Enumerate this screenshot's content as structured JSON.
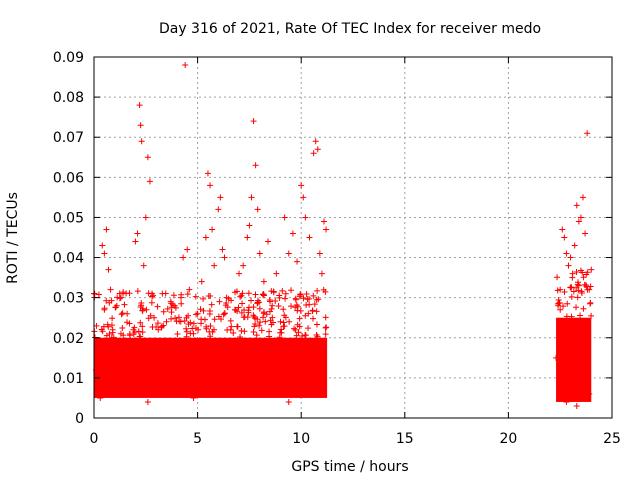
{
  "chart_data": {
    "type": "scatter",
    "title": "Day 316 of 2021, Rate Of TEC Index for receiver medo",
    "xlabel": "GPS time / hours",
    "ylabel": "ROTI / TECUs",
    "xlim": [
      0,
      25
    ],
    "ylim": [
      0,
      0.09
    ],
    "x_ticks": [
      "0",
      "5",
      "10",
      "15",
      "20",
      "25"
    ],
    "y_ticks": [
      "0",
      "0.01",
      "0.02",
      "0.03",
      "0.04",
      "0.05",
      "0.06",
      "0.07",
      "0.08",
      "0.09"
    ],
    "grid": true,
    "marker": "+",
    "colors": {
      "series": "#ff0000",
      "grid": "#a0a0a0"
    },
    "series": [
      {
        "points": [
          [
            0.1,
            0.012
          ],
          [
            0.2,
            0.016
          ],
          [
            0.3,
            0.009
          ],
          [
            0.4,
            0.043
          ],
          [
            0.5,
            0.041
          ],
          [
            0.6,
            0.047
          ],
          [
            0.7,
            0.037
          ],
          [
            0.8,
            0.032
          ],
          [
            0.9,
            0.022
          ],
          [
            1.0,
            0.018
          ],
          [
            1.1,
            0.028
          ],
          [
            1.2,
            0.014
          ],
          [
            1.3,
            0.021
          ],
          [
            1.4,
            0.031
          ],
          [
            1.5,
            0.019
          ],
          [
            1.6,
            0.026
          ],
          [
            1.7,
            0.012
          ],
          [
            1.8,
            0.015
          ],
          [
            1.9,
            0.022
          ],
          [
            2.0,
            0.044
          ],
          [
            2.1,
            0.046
          ],
          [
            2.2,
            0.078
          ],
          [
            2.25,
            0.073
          ],
          [
            2.3,
            0.069
          ],
          [
            2.4,
            0.038
          ],
          [
            2.5,
            0.05
          ],
          [
            2.6,
            0.065
          ],
          [
            2.7,
            0.059
          ],
          [
            2.8,
            0.031
          ],
          [
            2.9,
            0.025
          ],
          [
            3.0,
            0.016
          ],
          [
            3.1,
            0.022
          ],
          [
            3.2,
            0.018
          ],
          [
            3.4,
            0.013
          ],
          [
            3.5,
            0.024
          ],
          [
            3.7,
            0.019
          ],
          [
            3.9,
            0.028
          ],
          [
            4.0,
            0.015
          ],
          [
            4.2,
            0.03
          ],
          [
            4.3,
            0.04
          ],
          [
            4.4,
            0.088
          ],
          [
            4.5,
            0.042
          ],
          [
            4.6,
            0.032
          ],
          [
            4.8,
            0.021
          ],
          [
            5.0,
            0.026
          ],
          [
            5.2,
            0.034
          ],
          [
            5.4,
            0.045
          ],
          [
            5.5,
            0.061
          ],
          [
            5.6,
            0.058
          ],
          [
            5.7,
            0.047
          ],
          [
            5.8,
            0.038
          ],
          [
            6.0,
            0.052
          ],
          [
            6.1,
            0.055
          ],
          [
            6.2,
            0.042
          ],
          [
            6.4,
            0.03
          ],
          [
            6.6,
            0.022
          ],
          [
            6.8,
            0.027
          ],
          [
            7.0,
            0.036
          ],
          [
            7.2,
            0.038
          ],
          [
            7.4,
            0.045
          ],
          [
            7.5,
            0.048
          ],
          [
            7.6,
            0.055
          ],
          [
            7.7,
            0.074
          ],
          [
            7.8,
            0.063
          ],
          [
            7.9,
            0.052
          ],
          [
            8.0,
            0.041
          ],
          [
            8.2,
            0.034
          ],
          [
            8.4,
            0.044
          ],
          [
            8.6,
            0.028
          ],
          [
            8.8,
            0.036
          ],
          [
            9.0,
            0.024
          ],
          [
            9.2,
            0.05
          ],
          [
            9.4,
            0.041
          ],
          [
            9.6,
            0.046
          ],
          [
            9.8,
            0.039
          ],
          [
            10.0,
            0.058
          ],
          [
            10.1,
            0.055
          ],
          [
            10.2,
            0.05
          ],
          [
            10.4,
            0.045
          ],
          [
            10.6,
            0.066
          ],
          [
            10.7,
            0.069
          ],
          [
            10.8,
            0.067
          ],
          [
            10.9,
            0.041
          ],
          [
            11.0,
            0.036
          ],
          [
            11.1,
            0.049
          ],
          [
            11.2,
            0.047
          ],
          [
            0.5,
            0.027
          ],
          [
            1.3,
            0.03
          ],
          [
            3.3,
            0.031
          ],
          [
            6.3,
            0.04
          ],
          [
            22.3,
            0.015
          ],
          [
            22.4,
            0.028
          ],
          [
            22.5,
            0.032
          ],
          [
            22.6,
            0.047
          ],
          [
            22.7,
            0.045
          ],
          [
            22.8,
            0.041
          ],
          [
            22.9,
            0.038
          ],
          [
            23.0,
            0.04
          ],
          [
            23.1,
            0.036
          ],
          [
            23.2,
            0.043
          ],
          [
            23.3,
            0.053
          ],
          [
            23.4,
            0.049
          ],
          [
            23.5,
            0.05
          ],
          [
            23.6,
            0.055
          ],
          [
            23.7,
            0.046
          ],
          [
            23.8,
            0.071
          ],
          [
            23.9,
            0.032
          ],
          [
            24.0,
            0.037
          ],
          [
            22.5,
            0.027
          ],
          [
            23.4,
            0.033
          ],
          [
            0.3,
            0.005
          ],
          [
            1.0,
            0.006
          ],
          [
            2.6,
            0.004
          ],
          [
            4.8,
            0.005
          ],
          [
            7.0,
            0.006
          ],
          [
            9.4,
            0.004
          ],
          [
            11.0,
            0.006
          ],
          [
            22.8,
            0.004
          ],
          [
            23.3,
            0.003
          ],
          [
            23.9,
            0.006
          ]
        ]
      }
    ],
    "dense_band": [
      {
        "from": 0.0,
        "to": 11.25,
        "low": 0.005,
        "high": 0.02
      },
      {
        "from": 22.3,
        "to": 24.0,
        "low": 0.004,
        "high": 0.025
      }
    ]
  }
}
